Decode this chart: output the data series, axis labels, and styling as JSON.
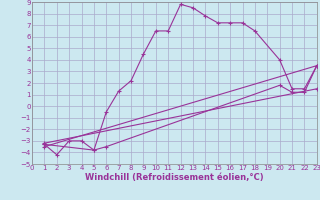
{
  "xlabel": "Windchill (Refroidissement éolien,°C)",
  "bg_color": "#cce8f0",
  "grid_color": "#aaaacc",
  "line_color": "#993399",
  "xlim": [
    0,
    23
  ],
  "ylim": [
    -5,
    9
  ],
  "xticks": [
    0,
    1,
    2,
    3,
    4,
    5,
    6,
    7,
    8,
    9,
    10,
    11,
    12,
    13,
    14,
    15,
    16,
    17,
    18,
    19,
    20,
    21,
    22,
    23
  ],
  "yticks": [
    -5,
    -4,
    -3,
    -2,
    -1,
    0,
    1,
    2,
    3,
    4,
    5,
    6,
    7,
    8,
    9
  ],
  "curve1_x": [
    1,
    2,
    3,
    4,
    5,
    6,
    7,
    8,
    9,
    10,
    11,
    12,
    13,
    14,
    15,
    16,
    17,
    18,
    20,
    21,
    22,
    23
  ],
  "curve1_y": [
    -3.3,
    -4.2,
    -3.0,
    -3.0,
    -3.8,
    -0.5,
    1.3,
    2.2,
    4.5,
    6.5,
    6.5,
    8.8,
    8.5,
    7.8,
    7.2,
    7.2,
    7.2,
    6.5,
    4.0,
    1.5,
    1.5,
    3.5
  ],
  "curve2_x": [
    1,
    23
  ],
  "curve2_y": [
    -3.5,
    3.5
  ],
  "curve3_x": [
    1,
    23
  ],
  "curve3_y": [
    -3.2,
    1.5
  ],
  "curve4_x": [
    1,
    5,
    6,
    20,
    21,
    22,
    23
  ],
  "curve4_y": [
    -3.3,
    -3.8,
    -3.5,
    1.8,
    1.2,
    1.2,
    3.5
  ]
}
